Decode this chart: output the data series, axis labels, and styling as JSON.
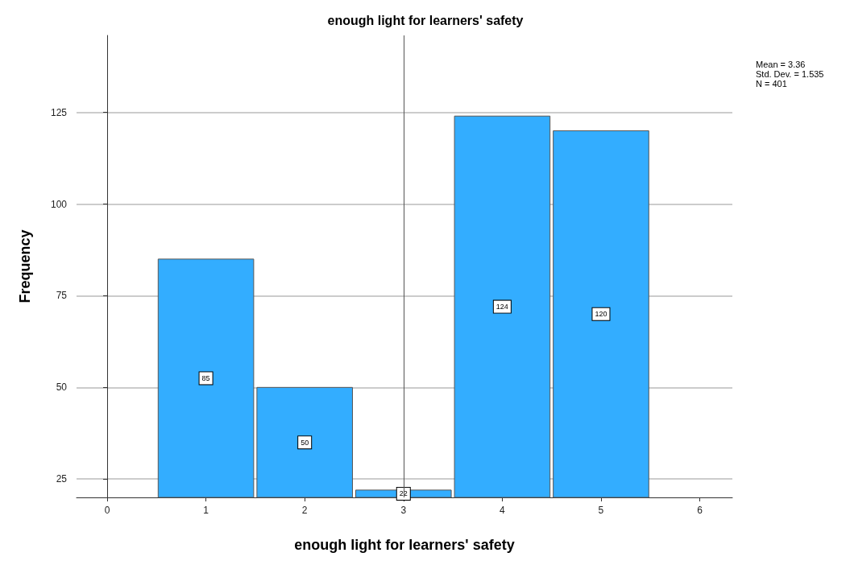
{
  "chart_data": {
    "type": "histogram",
    "title": "enough light for learners' safety",
    "xlabel": "enough light for learners' safety",
    "ylabel": "Frequency",
    "bins": [
      0.5,
      1.5,
      2.5,
      3.5,
      4.5,
      5.5
    ],
    "values": [
      85,
      50,
      22,
      124,
      120
    ],
    "color": "#33adff",
    "data_labels": true,
    "xlim": [
      -0.31,
      6.33
    ],
    "xticks": [
      0,
      1,
      2,
      3,
      4,
      5,
      6
    ],
    "ylim": [
      20,
      146
    ],
    "yticks": [
      25,
      50,
      75,
      100,
      125
    ],
    "grid": "y",
    "ref_lines": [
      {
        "axis": "x",
        "value": 3,
        "color": "#555555"
      }
    ],
    "annotations": [
      "Mean = 3.36",
      "Std. Dev. = 1.535",
      "N = 401"
    ]
  }
}
